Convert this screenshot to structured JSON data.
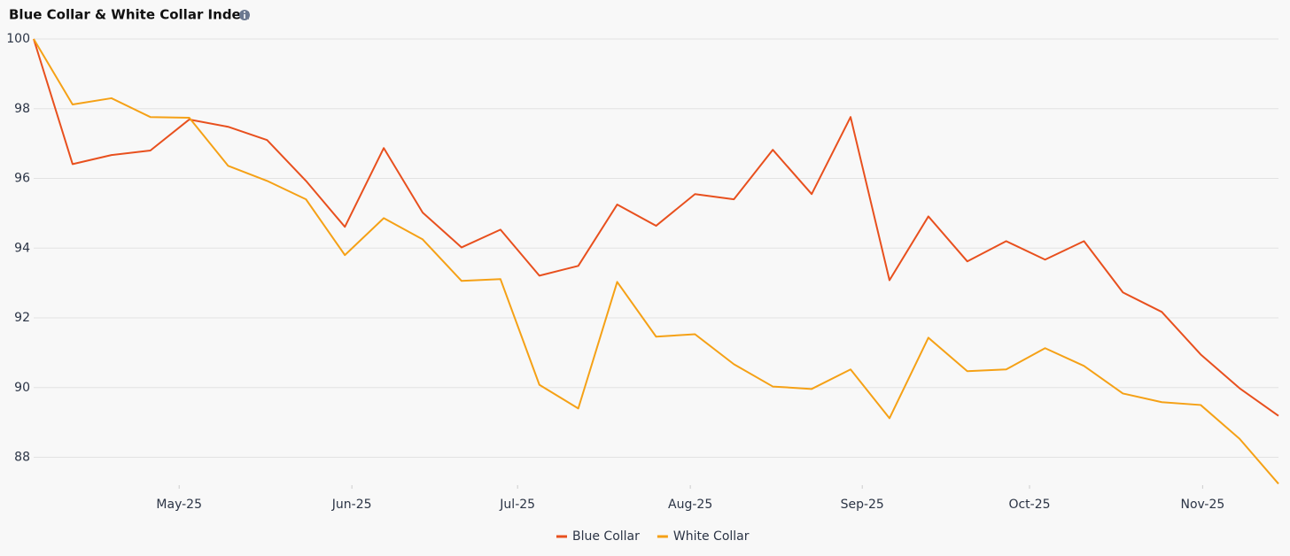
{
  "chart_data": {
    "type": "line",
    "title": "Blue Collar & White Collar Index",
    "x": [
      0,
      1,
      2,
      3,
      4,
      5,
      6,
      7,
      8,
      9,
      10,
      11,
      12,
      13,
      14,
      15,
      16,
      17,
      18,
      19,
      20,
      21,
      22,
      23,
      24,
      25,
      26,
      27,
      28,
      29,
      30,
      31,
      32
    ],
    "series": [
      {
        "name": "Blue Collar",
        "color": "#e8501e",
        "values": [
          100,
          96.41,
          96.67,
          96.8,
          97.69,
          97.48,
          97.1,
          95.93,
          94.61,
          96.87,
          95.02,
          94.02,
          94.53,
          93.21,
          93.49,
          95.25,
          94.64,
          95.55,
          95.4,
          96.82,
          95.55,
          97.76,
          93.08,
          94.91,
          93.62,
          94.2,
          93.67,
          94.2,
          92.73,
          92.17,
          90.95,
          89.98,
          89.19
        ]
      },
      {
        "name": "White Collar",
        "color": "#f5a116",
        "values": [
          100,
          98.12,
          98.3,
          97.76,
          97.74,
          96.36,
          95.93,
          95.4,
          93.8,
          94.86,
          94.25,
          93.06,
          93.11,
          90.08,
          89.4,
          93.03,
          91.46,
          91.53,
          90.67,
          90.03,
          89.96,
          90.52,
          89.12,
          91.43,
          90.47,
          90.52,
          91.13,
          90.62,
          89.83,
          89.58,
          89.5,
          88.53,
          87.24
        ]
      }
    ],
    "xlim": [
      0,
      32
    ],
    "xticks": [
      {
        "value": 3.74,
        "label": "May-25"
      },
      {
        "value": 8.18,
        "label": "Jun-25"
      },
      {
        "value": 12.44,
        "label": "Jul-25"
      },
      {
        "value": 16.88,
        "label": "Aug-25"
      },
      {
        "value": 21.3,
        "label": "Sep-25"
      },
      {
        "value": 25.6,
        "label": "Oct-25"
      },
      {
        "value": 30.05,
        "label": "Nov-25"
      }
    ],
    "ylim": [
      87.2,
      100
    ],
    "yticks": [
      88,
      90,
      92,
      94,
      96,
      98,
      100
    ],
    "grid": true,
    "legend": "bottom"
  }
}
